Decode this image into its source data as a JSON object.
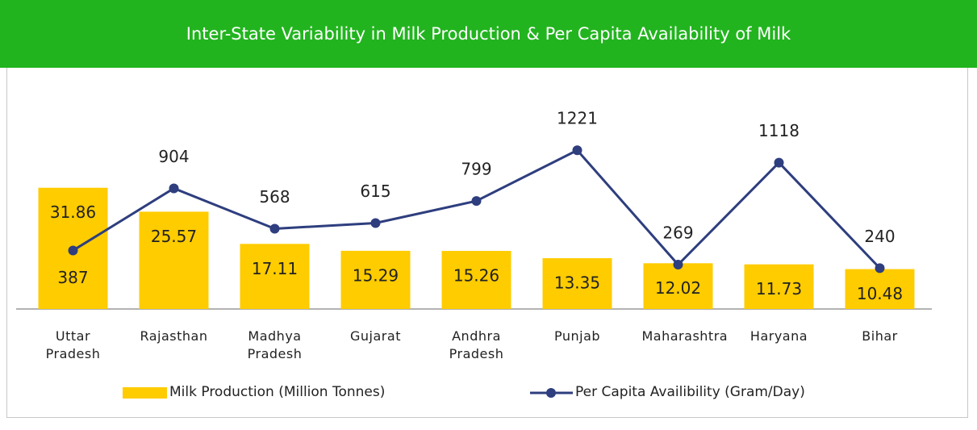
{
  "chart_data": {
    "type": "bar-line",
    "title": "Inter-State Variability in Milk Production & Per Capita Availability of Milk",
    "categories": [
      "Uttar Pradesh",
      "Rajasthan",
      "Madhya Pradesh",
      "Gujarat",
      "Andhra Pradesh",
      "Punjab",
      "Maharashtra",
      "Haryana",
      "Bihar"
    ],
    "series": [
      {
        "name": "Milk Production (Million Tonnes)",
        "type": "bar",
        "color": "#ffcc00",
        "values": [
          31.86,
          25.57,
          17.11,
          15.29,
          15.26,
          13.35,
          12.02,
          11.73,
          10.48
        ]
      },
      {
        "name": "Per Capita Availibility (Gram/Day)",
        "type": "line",
        "axis": "y2",
        "color": "#2e3e7e",
        "values": [
          387,
          904,
          568,
          615,
          799,
          1221,
          269,
          1118,
          240
        ]
      }
    ],
    "ylim": [
      0,
      60
    ],
    "y2lim": [
      -100,
      1800
    ],
    "legend": "bottom"
  }
}
